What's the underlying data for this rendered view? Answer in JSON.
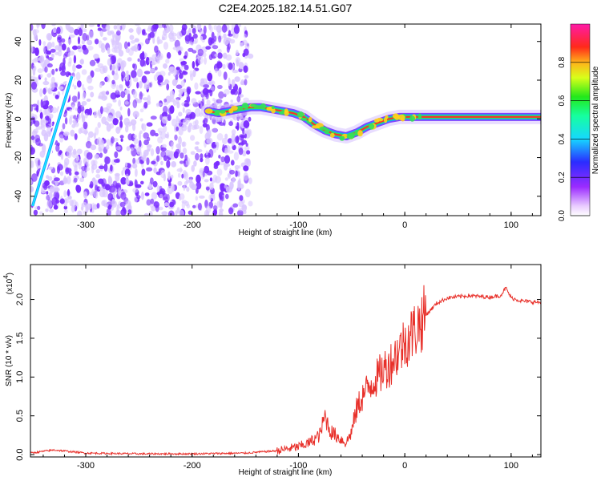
{
  "title": "C2E4.2025.182.14.51.G07",
  "colors": {
    "spectrogram_low": "#7a2cff",
    "spectrogram_pale": "#d9c6ff",
    "trace_core": "#ff2a2a",
    "trace_mid": "#33e05a",
    "trace_edge": "#1aa0ff",
    "snr_line": "#e8302a"
  },
  "chart_data": [
    {
      "type": "heatmap",
      "name": "spectrogram",
      "xlabel": "Height of straight line (km)",
      "ylabel": "Frequency (Hz)",
      "xlim": [
        -352,
        128
      ],
      "ylim": [
        -50,
        49
      ],
      "xticks": [
        -300,
        -200,
        -100,
        0,
        100
      ],
      "xtick_labels": [
        "-300",
        "-200",
        "-100",
        "0",
        "100"
      ],
      "yticks": [
        -40,
        -20,
        0,
        20,
        40
      ],
      "ytick_labels": [
        "-40",
        "-20",
        "0",
        "20",
        "40"
      ],
      "colorbar": {
        "label": "Normalized spectral amplitude",
        "range": [
          0,
          1
        ],
        "ticks": [
          0.0,
          0.2,
          0.4,
          0.6,
          0.8
        ],
        "tick_labels": [
          "0.0",
          "0.2",
          "0.4",
          "0.6",
          "0.8"
        ],
        "colormap": "rainbow (purple → blue → cyan → green → yellow → red → magenta)"
      },
      "noise_region_x": [
        -352,
        -145
      ],
      "ridge_trace": {
        "x": [
          -185,
          -175,
          -165,
          -155,
          -145,
          -135,
          -125,
          -115,
          -105,
          -95,
          -85,
          -75,
          -65,
          -55,
          -45,
          -35,
          -25,
          -15,
          -5,
          0,
          20,
          60,
          95,
          128
        ],
        "y": [
          4,
          3,
          4,
          5,
          6,
          6,
          5,
          4,
          3,
          1,
          -3,
          -6,
          -8,
          -9,
          -7,
          -4,
          -2,
          0,
          1,
          1,
          1,
          1,
          1,
          1
        ]
      },
      "streak": {
        "x": [
          -350,
          -313
        ],
        "y": [
          -45,
          22
        ]
      }
    },
    {
      "type": "line",
      "name": "snr",
      "xlabel": "Height of straight line (km)",
      "ylabel": "SNR (10 * v/v)",
      "scale_label": "(x10",
      "scale_exponent": "4",
      "xlim": [
        -352,
        128
      ],
      "ylim": [
        -0.03,
        2.45
      ],
      "xticks": [
        -300,
        -200,
        -100,
        0,
        100
      ],
      "xtick_labels": [
        "-300",
        "-200",
        "-100",
        "0",
        "100"
      ],
      "yticks": [
        0.0,
        0.5,
        1.0,
        1.5,
        2.0
      ],
      "ytick_labels": [
        "0.0",
        "0.5",
        "1.0",
        "1.5",
        "2.0"
      ],
      "series": [
        {
          "x": [
            -352,
            -330,
            -300,
            -250,
            -200,
            -150,
            -120,
            -100,
            -90,
            -80,
            -75,
            -70,
            -60,
            -55,
            -50,
            -45,
            -40,
            -35,
            -30,
            -25,
            -20,
            -15,
            -10,
            -5,
            0,
            10,
            20,
            30,
            40,
            60,
            80,
            90,
            95,
            100,
            110,
            128
          ],
          "y": [
            0.02,
            0.06,
            0.02,
            0.01,
            0.01,
            0.02,
            0.05,
            0.1,
            0.15,
            0.25,
            0.5,
            0.3,
            0.2,
            0.15,
            0.3,
            0.6,
            0.75,
            0.85,
            0.95,
            1.0,
            1.1,
            1.15,
            1.25,
            1.35,
            1.45,
            1.62,
            1.8,
            1.95,
            2.02,
            2.05,
            2.03,
            2.05,
            2.15,
            2.02,
            1.98,
            1.96
          ]
        }
      ]
    }
  ]
}
